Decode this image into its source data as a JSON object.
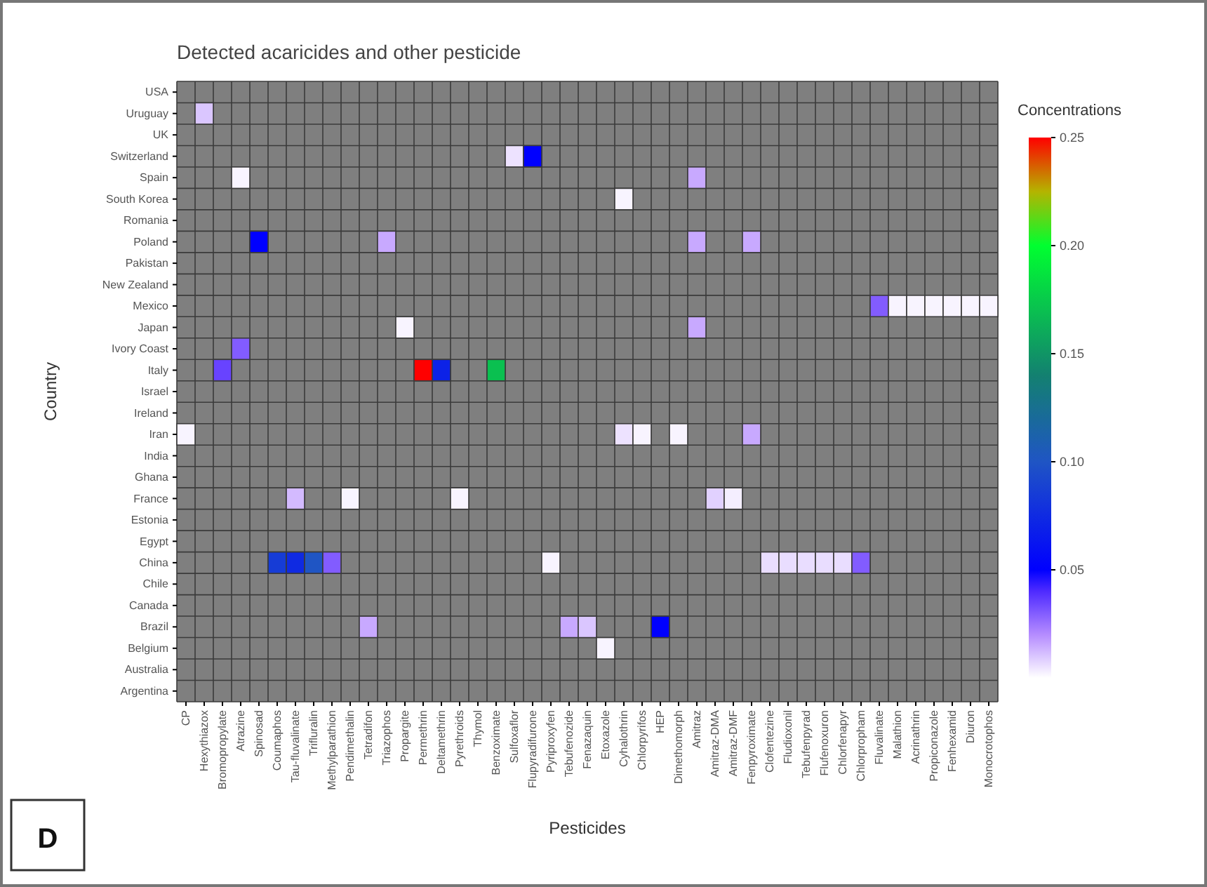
{
  "chart_data": {
    "type": "heatmap",
    "title": "Detected acaricides and other pesticide",
    "xlabel": "Pesticides",
    "ylabel": "Country",
    "clabel": "Concentrations",
    "categories": [
      "CP",
      "Hexythiazox",
      "Bromopropylate",
      "Atrazine",
      "Spinosad",
      "Coumaphos",
      "Tau-fluvalinate",
      "Trifluralin",
      "Methylparathion",
      "Pendimethalin",
      "Tetradifon",
      "Triazophos",
      "Propargite",
      "Permethrin",
      "Deltamethrin",
      "Pyrethroids",
      "Thymol",
      "Benzoximate",
      "Sulfoxaflor",
      "Flupyradifurone",
      "Pyriproxyfen",
      "Tebufenozide",
      "Fenazaquin",
      "Etoxazole",
      "Cyhalothrin",
      "Chlorpyrifos",
      "HEP",
      "Dimethomorph",
      "Amitraz",
      "Amitraz-DMA",
      "Amitraz-DMF",
      "Fenpyroximate",
      "Clofentezine",
      "Fludioxonil",
      "Tebufenpyrad",
      "Flufenoxuron",
      "Chlorfenapyr",
      "Chlorpropham",
      "Fluvalinate",
      "Malathion",
      "Acrinathrin",
      "Propiconazole",
      "Fenhexamid",
      "Diuron",
      "Monocrotophos"
    ],
    "y_categories": [
      "USA",
      "Uruguay",
      "UK",
      "Switzerland",
      "Spain",
      "South Korea",
      "Romania",
      "Poland",
      "Pakistan",
      "New Zealand",
      "Mexico",
      "Japan",
      "Ivory Coast",
      "Italy",
      "Israel",
      "Ireland",
      "Iran",
      "India",
      "Ghana",
      "France",
      "Estonia",
      "Egypt",
      "China",
      "Chile",
      "Canada",
      "Brazil",
      "Belgium",
      "Australia",
      "Argentina"
    ],
    "cells": [
      [
        null,
        null,
        null,
        null,
        null,
        null,
        null,
        null,
        null,
        null,
        null,
        null,
        null,
        null,
        null,
        null,
        null,
        null,
        null,
        null,
        null,
        null,
        null,
        null,
        null,
        null,
        null,
        null,
        null,
        null,
        null,
        null,
        null,
        null,
        null,
        null,
        null,
        null,
        null,
        null,
        null,
        null,
        null,
        null,
        null
      ],
      [
        null,
        0.01,
        null,
        null,
        null,
        null,
        null,
        null,
        null,
        null,
        null,
        null,
        null,
        null,
        null,
        null,
        null,
        null,
        null,
        null,
        null,
        null,
        null,
        null,
        null,
        null,
        null,
        null,
        null,
        null,
        null,
        null,
        null,
        null,
        null,
        null,
        null,
        null,
        null,
        null,
        null,
        null,
        null,
        null,
        null
      ],
      [
        null,
        null,
        null,
        null,
        null,
        null,
        null,
        null,
        null,
        null,
        null,
        null,
        null,
        null,
        null,
        null,
        null,
        null,
        null,
        null,
        null,
        null,
        null,
        null,
        null,
        null,
        null,
        null,
        null,
        null,
        null,
        null,
        null,
        null,
        null,
        null,
        null,
        null,
        null,
        null,
        null,
        null,
        null,
        null,
        null
      ],
      [
        null,
        null,
        null,
        null,
        null,
        null,
        null,
        null,
        null,
        null,
        null,
        null,
        null,
        null,
        null,
        null,
        null,
        null,
        0.005,
        0.05,
        null,
        null,
        null,
        null,
        null,
        null,
        null,
        null,
        null,
        null,
        null,
        null,
        null,
        null,
        null,
        null,
        null,
        null,
        null,
        null,
        null,
        null,
        null,
        null,
        null
      ],
      [
        null,
        null,
        null,
        0.002,
        null,
        null,
        null,
        null,
        null,
        null,
        null,
        null,
        null,
        null,
        null,
        null,
        null,
        null,
        null,
        null,
        null,
        null,
        null,
        null,
        null,
        null,
        null,
        null,
        0.015,
        null,
        null,
        null,
        null,
        null,
        null,
        null,
        null,
        null,
        null,
        null,
        null,
        null,
        null,
        null,
        null
      ],
      [
        null,
        null,
        null,
        null,
        null,
        null,
        null,
        null,
        null,
        null,
        null,
        null,
        null,
        null,
        null,
        null,
        null,
        null,
        null,
        null,
        null,
        null,
        null,
        null,
        0.002,
        null,
        null,
        null,
        null,
        null,
        null,
        null,
        null,
        null,
        null,
        null,
        null,
        null,
        null,
        null,
        null,
        null,
        null,
        null,
        null
      ],
      [
        null,
        null,
        null,
        null,
        null,
        null,
        null,
        null,
        null,
        null,
        null,
        null,
        null,
        null,
        null,
        null,
        null,
        null,
        null,
        null,
        null,
        null,
        null,
        null,
        null,
        null,
        null,
        null,
        null,
        null,
        null,
        null,
        null,
        null,
        null,
        null,
        null,
        null,
        null,
        null,
        null,
        null,
        null,
        null,
        null
      ],
      [
        null,
        null,
        null,
        null,
        0.05,
        null,
        null,
        null,
        null,
        null,
        null,
        0.015,
        null,
        null,
        null,
        null,
        null,
        null,
        null,
        null,
        null,
        null,
        null,
        null,
        null,
        null,
        null,
        null,
        0.015,
        null,
        null,
        0.015,
        null,
        null,
        null,
        null,
        null,
        null,
        null,
        null,
        null,
        null,
        null,
        null,
        null
      ],
      [
        null,
        null,
        null,
        null,
        null,
        null,
        null,
        null,
        null,
        null,
        null,
        null,
        null,
        null,
        null,
        null,
        null,
        null,
        null,
        null,
        null,
        null,
        null,
        null,
        null,
        null,
        null,
        null,
        null,
        null,
        null,
        null,
        null,
        null,
        null,
        null,
        null,
        null,
        null,
        null,
        null,
        null,
        null,
        null,
        null
      ],
      [
        null,
        null,
        null,
        null,
        null,
        null,
        null,
        null,
        null,
        null,
        null,
        null,
        null,
        null,
        null,
        null,
        null,
        null,
        null,
        null,
        null,
        null,
        null,
        null,
        null,
        null,
        null,
        null,
        null,
        null,
        null,
        null,
        null,
        null,
        null,
        null,
        null,
        null,
        null,
        null,
        null,
        null,
        null,
        null,
        null
      ],
      [
        null,
        null,
        null,
        null,
        null,
        null,
        null,
        null,
        null,
        null,
        null,
        null,
        null,
        null,
        null,
        null,
        null,
        null,
        null,
        null,
        null,
        null,
        null,
        null,
        null,
        null,
        null,
        null,
        null,
        null,
        null,
        null,
        null,
        null,
        null,
        null,
        null,
        null,
        0.03,
        0.002,
        0.002,
        0.002,
        0.002,
        0.002,
        0.002
      ],
      [
        null,
        null,
        null,
        null,
        null,
        null,
        null,
        null,
        null,
        null,
        null,
        null,
        0.002,
        null,
        null,
        null,
        null,
        null,
        null,
        null,
        null,
        null,
        null,
        null,
        null,
        null,
        null,
        null,
        0.015,
        null,
        null,
        null,
        null,
        null,
        null,
        null,
        null,
        null,
        null,
        null,
        null,
        null,
        null,
        null,
        null
      ],
      [
        null,
        null,
        null,
        0.03,
        null,
        null,
        null,
        null,
        null,
        null,
        null,
        null,
        null,
        null,
        null,
        null,
        null,
        null,
        null,
        null,
        null,
        null,
        null,
        null,
        null,
        null,
        null,
        null,
        null,
        null,
        null,
        null,
        null,
        null,
        null,
        null,
        null,
        null,
        null,
        null,
        null,
        null,
        null,
        null,
        null
      ],
      [
        null,
        null,
        0.035,
        null,
        null,
        null,
        null,
        null,
        null,
        null,
        null,
        null,
        null,
        0.25,
        0.07,
        null,
        null,
        0.17,
        null,
        null,
        null,
        null,
        null,
        null,
        null,
        null,
        null,
        null,
        null,
        null,
        null,
        null,
        null,
        null,
        null,
        null,
        null,
        null,
        null,
        null,
        null,
        null,
        null,
        null,
        null
      ],
      [
        null,
        null,
        null,
        null,
        null,
        null,
        null,
        null,
        null,
        null,
        null,
        null,
        null,
        null,
        null,
        null,
        null,
        null,
        null,
        null,
        null,
        null,
        null,
        null,
        null,
        null,
        null,
        null,
        null,
        null,
        null,
        null,
        null,
        null,
        null,
        null,
        null,
        null,
        null,
        null,
        null,
        null,
        null,
        null,
        null
      ],
      [
        null,
        null,
        null,
        null,
        null,
        null,
        null,
        null,
        null,
        null,
        null,
        null,
        null,
        null,
        null,
        null,
        null,
        null,
        null,
        null,
        null,
        null,
        null,
        null,
        null,
        null,
        null,
        null,
        null,
        null,
        null,
        null,
        null,
        null,
        null,
        null,
        null,
        null,
        null,
        null,
        null,
        null,
        null,
        null,
        null
      ],
      [
        0.002,
        null,
        null,
        null,
        null,
        null,
        null,
        null,
        null,
        null,
        null,
        null,
        null,
        null,
        null,
        null,
        null,
        null,
        null,
        null,
        null,
        null,
        null,
        null,
        0.005,
        0.002,
        null,
        0.002,
        null,
        null,
        null,
        0.015,
        null,
        null,
        null,
        null,
        null,
        null,
        null,
        null,
        null,
        null,
        null,
        null,
        null
      ],
      [
        null,
        null,
        null,
        null,
        null,
        null,
        null,
        null,
        null,
        null,
        null,
        null,
        null,
        null,
        null,
        null,
        null,
        null,
        null,
        null,
        null,
        null,
        null,
        null,
        null,
        null,
        null,
        null,
        null,
        null,
        null,
        null,
        null,
        null,
        null,
        null,
        null,
        null,
        null,
        null,
        null,
        null,
        null,
        null,
        null
      ],
      [
        null,
        null,
        null,
        null,
        null,
        null,
        null,
        null,
        null,
        null,
        null,
        null,
        null,
        null,
        null,
        null,
        null,
        null,
        null,
        null,
        null,
        null,
        null,
        null,
        null,
        null,
        null,
        null,
        null,
        null,
        null,
        null,
        null,
        null,
        null,
        null,
        null,
        null,
        null,
        null,
        null,
        null,
        null,
        null,
        null
      ],
      [
        null,
        null,
        null,
        null,
        null,
        null,
        0.012,
        null,
        null,
        0.002,
        null,
        null,
        null,
        null,
        null,
        0.002,
        null,
        null,
        null,
        null,
        null,
        null,
        null,
        null,
        null,
        null,
        null,
        null,
        null,
        0.008,
        0.003,
        null,
        null,
        null,
        null,
        null,
        null,
        null,
        null,
        null,
        null,
        null,
        null,
        null,
        null
      ],
      [
        null,
        null,
        null,
        null,
        null,
        null,
        null,
        null,
        null,
        null,
        null,
        null,
        null,
        null,
        null,
        null,
        null,
        null,
        null,
        null,
        null,
        null,
        null,
        null,
        null,
        null,
        null,
        null,
        null,
        null,
        null,
        null,
        null,
        null,
        null,
        null,
        null,
        null,
        null,
        null,
        null,
        null,
        null,
        null,
        null
      ],
      [
        null,
        null,
        null,
        null,
        null,
        null,
        null,
        null,
        null,
        null,
        null,
        null,
        null,
        null,
        null,
        null,
        null,
        null,
        null,
        null,
        null,
        null,
        null,
        null,
        null,
        null,
        null,
        null,
        null,
        null,
        null,
        null,
        null,
        null,
        null,
        null,
        null,
        null,
        null,
        null,
        null,
        null,
        null,
        null,
        null
      ],
      [
        null,
        null,
        null,
        null,
        null,
        0.085,
        0.075,
        0.1,
        0.03,
        null,
        null,
        null,
        null,
        null,
        null,
        null,
        null,
        null,
        null,
        null,
        0.002,
        null,
        null,
        null,
        null,
        null,
        null,
        null,
        null,
        null,
        null,
        null,
        0.006,
        0.006,
        0.006,
        0.006,
        0.006,
        0.03,
        null,
        null,
        null,
        null,
        null,
        null,
        null
      ],
      [
        null,
        null,
        null,
        null,
        null,
        null,
        null,
        null,
        null,
        null,
        null,
        null,
        null,
        null,
        null,
        null,
        null,
        null,
        null,
        null,
        null,
        null,
        null,
        null,
        null,
        null,
        null,
        null,
        null,
        null,
        null,
        null,
        null,
        null,
        null,
        null,
        null,
        null,
        null,
        null,
        null,
        null,
        null,
        null,
        null
      ],
      [
        null,
        null,
        null,
        null,
        null,
        null,
        null,
        null,
        null,
        null,
        null,
        null,
        null,
        null,
        null,
        null,
        null,
        null,
        null,
        null,
        null,
        null,
        null,
        null,
        null,
        null,
        null,
        null,
        null,
        null,
        null,
        null,
        null,
        null,
        null,
        null,
        null,
        null,
        null,
        null,
        null,
        null,
        null,
        null,
        null
      ],
      [
        null,
        null,
        null,
        null,
        null,
        null,
        null,
        null,
        null,
        null,
        0.015,
        null,
        null,
        null,
        null,
        null,
        null,
        null,
        null,
        null,
        null,
        0.015,
        0.01,
        null,
        null,
        null,
        0.05,
        null,
        null,
        null,
        null,
        null,
        null,
        null,
        null,
        null,
        null,
        null,
        null,
        null,
        null,
        null,
        null,
        null,
        null
      ],
      [
        null,
        null,
        null,
        null,
        null,
        null,
        null,
        null,
        null,
        null,
        null,
        null,
        null,
        null,
        null,
        null,
        null,
        null,
        null,
        null,
        null,
        null,
        null,
        0.002,
        null,
        null,
        null,
        null,
        null,
        null,
        null,
        null,
        null,
        null,
        null,
        null,
        null,
        null,
        null,
        null,
        null,
        null,
        null,
        null,
        null
      ],
      [
        null,
        null,
        null,
        null,
        null,
        null,
        null,
        null,
        null,
        null,
        null,
        null,
        null,
        null,
        null,
        null,
        null,
        null,
        null,
        null,
        null,
        null,
        null,
        null,
        null,
        null,
        null,
        null,
        null,
        null,
        null,
        null,
        null,
        null,
        null,
        null,
        null,
        null,
        null,
        null,
        null,
        null,
        null,
        null,
        null
      ],
      [
        null,
        null,
        null,
        null,
        null,
        null,
        null,
        null,
        null,
        null,
        null,
        null,
        null,
        null,
        null,
        null,
        null,
        null,
        null,
        null,
        null,
        null,
        null,
        null,
        null,
        null,
        null,
        null,
        null,
        null,
        null,
        null,
        null,
        null,
        null,
        null,
        null,
        null,
        null,
        null,
        null,
        null,
        null,
        null,
        null
      ]
    ],
    "clim": [
      0,
      0.25
    ],
    "cticks": [
      {
        "value": 0.05,
        "label": "0.05"
      },
      {
        "value": 0.1,
        "label": "0.10"
      },
      {
        "value": 0.15,
        "label": "0.15"
      },
      {
        "value": 0.2,
        "label": "0.20"
      },
      {
        "value": 0.25,
        "label": "0.25"
      }
    ],
    "annotations": [
      "D"
    ]
  }
}
